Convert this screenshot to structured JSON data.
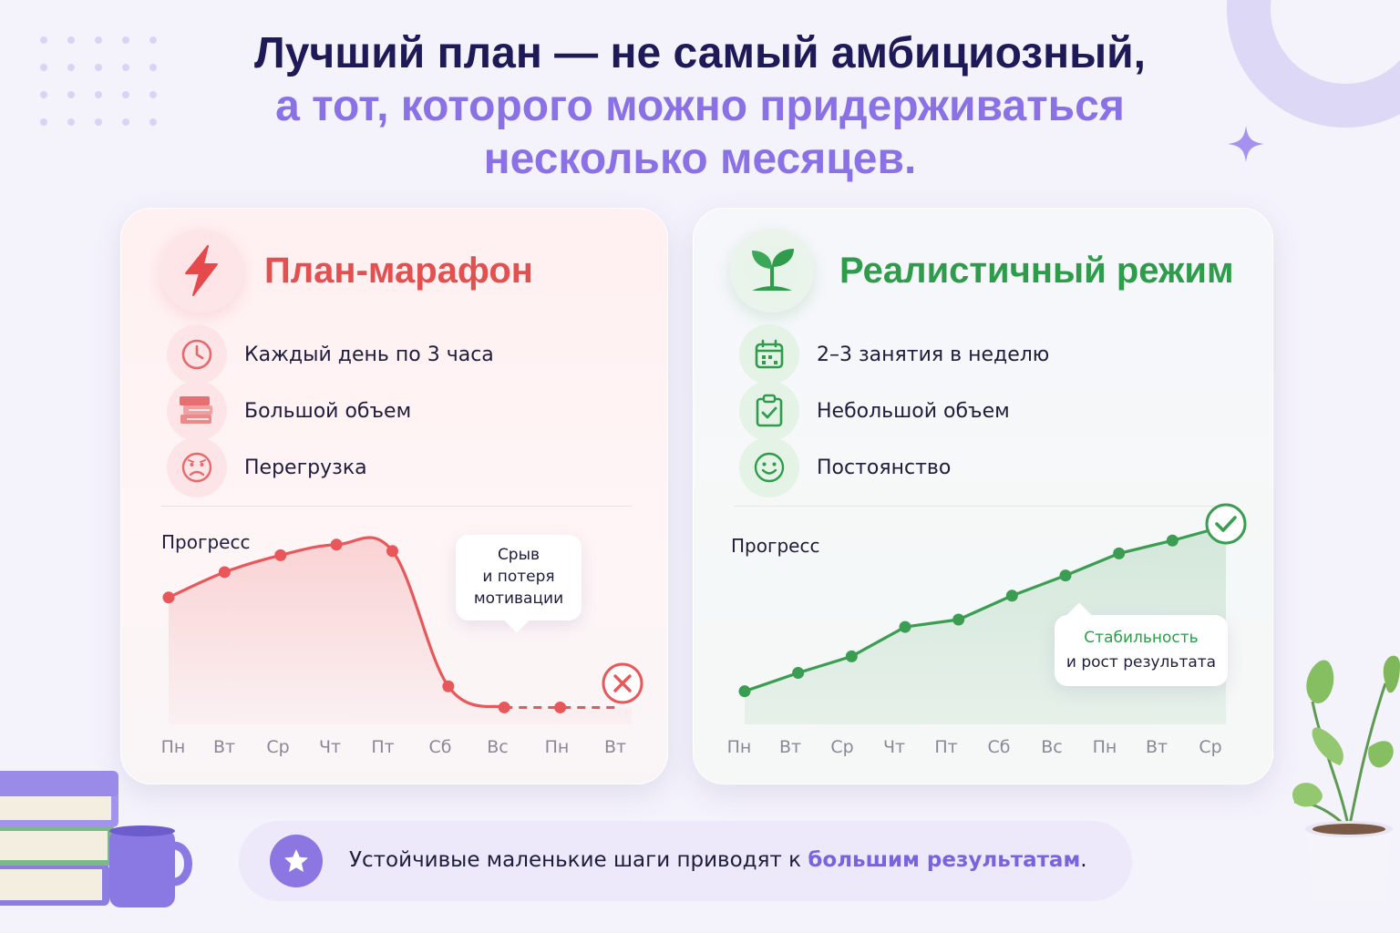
{
  "headline": {
    "line1": "Лучший план — не самый амбициозный,",
    "line2": "а тот, которого можно придерживаться",
    "line3": "несколько месяцев."
  },
  "marathon": {
    "title": "План-марафон",
    "icon": "lightning-icon",
    "features": [
      {
        "icon": "clock-icon",
        "label": "Каждый день по 3 часа"
      },
      {
        "icon": "books-icon",
        "label": "Большой объем"
      },
      {
        "icon": "sad-face-icon",
        "label": "Перегрузка"
      }
    ],
    "progress_label": "Прогресс",
    "callout": [
      "Срыв",
      "и потеря",
      "мотивации"
    ],
    "end_marker": "x-icon"
  },
  "realistic": {
    "title": "Реалистичный режим",
    "icon": "sprout-icon",
    "features": [
      {
        "icon": "calendar-icon",
        "label": "2–3 занятия в неделю"
      },
      {
        "icon": "checklist-icon",
        "label": "Небольшой объем"
      },
      {
        "icon": "smile-icon",
        "label": "Постоянство"
      }
    ],
    "progress_label": "Прогресс",
    "callout": [
      "Стабильность",
      "и рост результата"
    ],
    "end_marker": "check-icon"
  },
  "banner": {
    "icon": "star-icon",
    "text": "Устойчивые маленькие шаги приводят к ",
    "accent": "большим результатам",
    "end": "."
  },
  "colors": {
    "red": "#e2504f",
    "green": "#2e9c4a",
    "purple": "#8a72e6",
    "navy": "#1d1a57"
  },
  "chart_data": [
    {
      "type": "line",
      "title": "",
      "ylabel": "Прогресс",
      "categories": [
        "Пн",
        "Вт",
        "Ср",
        "Чт",
        "Пт",
        "Сб",
        "Вс",
        "Пн",
        "Вт"
      ],
      "series": [
        {
          "values": [
            60,
            72,
            80,
            85,
            82,
            18,
            8,
            8,
            8
          ]
        }
      ],
      "ylim": [
        0,
        100
      ],
      "dashed_from_index": 6,
      "annotation": "Срыв и потеря мотивации"
    },
    {
      "type": "area",
      "title": "",
      "ylabel": "Прогресс",
      "categories": [
        "Пн",
        "Вт",
        "Ср",
        "Чт",
        "Пт",
        "Сб",
        "Вс",
        "Пн",
        "Вт",
        "Ср"
      ],
      "series": [
        {
          "values": [
            18,
            28,
            37,
            53,
            57,
            70,
            81,
            93,
            100,
            108
          ]
        }
      ],
      "ylim": [
        0,
        115
      ],
      "annotation": "Стабильность и рост результата"
    }
  ]
}
